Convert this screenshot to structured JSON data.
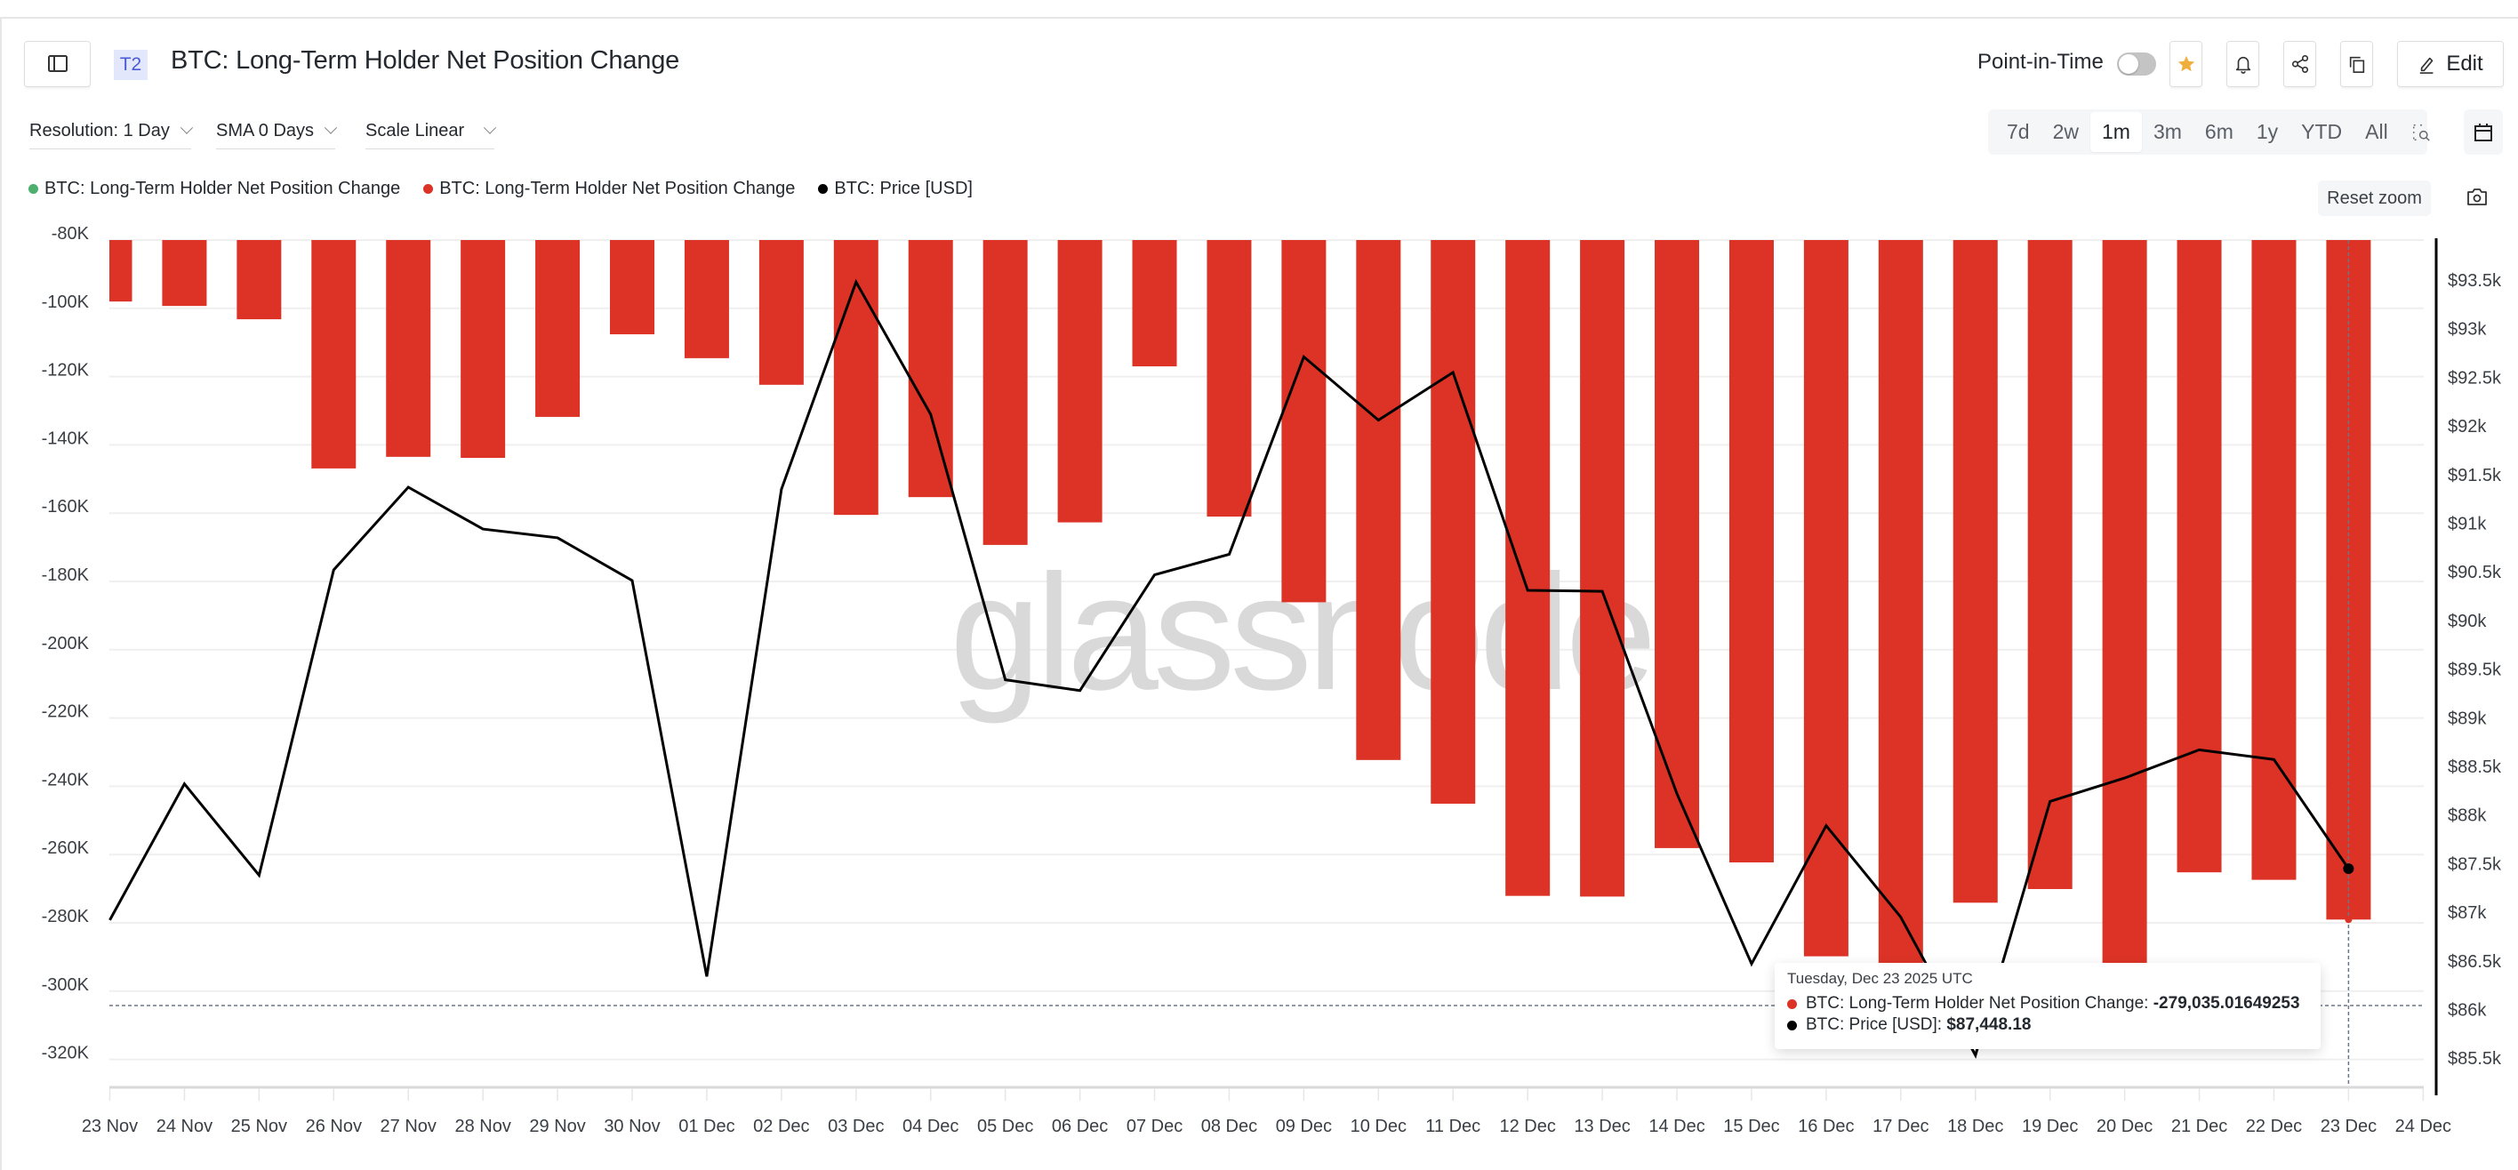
{
  "header": {
    "badge": "T2",
    "title": "BTC: Long-Term Holder Net Position Change",
    "point_in_time_label": "Point-in-Time",
    "point_in_time_enabled": false,
    "edit_label": "Edit",
    "icons": [
      "sidebar-toggle-icon",
      "star-icon",
      "bell-icon",
      "share-icon",
      "copy-icon",
      "pencil-icon"
    ]
  },
  "controls": {
    "resolution": "Resolution: 1 Day",
    "sma": "SMA 0 Days",
    "scale": "Scale Linear"
  },
  "ranges": [
    {
      "label": "7d",
      "active": false
    },
    {
      "label": "2w",
      "active": false
    },
    {
      "label": "1m",
      "active": true
    },
    {
      "label": "3m",
      "active": false
    },
    {
      "label": "6m",
      "active": false
    },
    {
      "label": "1y",
      "active": false
    },
    {
      "label": "YTD",
      "active": false
    },
    {
      "label": "All",
      "active": false
    }
  ],
  "reset_zoom_label": "Reset zoom",
  "legend": [
    {
      "label": "BTC: Long-Term Holder Net Position Change",
      "color": "#4caf6e"
    },
    {
      "label": "BTC: Long-Term Holder Net Position Change",
      "color": "#dc3326"
    },
    {
      "label": "BTC: Price [USD]",
      "color": "#000000"
    }
  ],
  "tooltip": {
    "date": "Tuesday, Dec 23 2025 UTC",
    "rows": [
      {
        "label": "BTC: Long-Term Holder Net Position Change: ",
        "value": "-279,035.01649253",
        "color": "#dc3326"
      },
      {
        "label": "BTC: Price [USD]: ",
        "value": "$87,448.18",
        "color": "#000000"
      }
    ]
  },
  "watermark": "glassnode",
  "colors": {
    "bar": "#dc3326",
    "price_line": "#000000",
    "grid": "#efefef",
    "accent_star": "#f0ae3c"
  },
  "chart_data": {
    "type": "bar",
    "title": "BTC: Long-Term Holder Net Position Change",
    "xlabel": "",
    "ylabel": "",
    "categories": [
      "23 Nov",
      "24 Nov",
      "25 Nov",
      "26 Nov",
      "27 Nov",
      "28 Nov",
      "29 Nov",
      "30 Nov",
      "01 Dec",
      "02 Dec",
      "03 Dec",
      "04 Dec",
      "05 Dec",
      "06 Dec",
      "07 Dec",
      "08 Dec",
      "09 Dec",
      "10 Dec",
      "11 Dec",
      "12 Dec",
      "13 Dec",
      "14 Dec",
      "15 Dec",
      "16 Dec",
      "17 Dec",
      "18 Dec",
      "19 Dec",
      "20 Dec",
      "21 Dec",
      "22 Dec",
      "23 Dec"
    ],
    "x_tick_labels": [
      "23 Nov",
      "24 Nov",
      "25 Nov",
      "26 Nov",
      "27 Nov",
      "28 Nov",
      "29 Nov",
      "30 Nov",
      "01 Dec",
      "02 Dec",
      "03 Dec",
      "04 Dec",
      "05 Dec",
      "06 Dec",
      "07 Dec",
      "08 Dec",
      "09 Dec",
      "10 Dec",
      "11 Dec",
      "12 Dec",
      "13 Dec",
      "14 Dec",
      "15 Dec",
      "16 Dec",
      "17 Dec",
      "18 Dec",
      "19 Dec",
      "20 Dec",
      "21 Dec",
      "22 Dec",
      "23 Dec",
      "24 Dec"
    ],
    "series": [
      {
        "name": "BTC: Long-Term Holder Net Position Change",
        "type": "bar",
        "axis": "left",
        "color": "#dc3326",
        "values": [
          -98000,
          -99300,
          -103200,
          -146900,
          -143500,
          -143800,
          -131800,
          -107600,
          -114600,
          -122400,
          -160500,
          -155300,
          -169300,
          -162700,
          -117000,
          -161000,
          -186100,
          -232300,
          -245100,
          -272100,
          -272300,
          -258100,
          -262300,
          -289800,
          -296000,
          -274100,
          -270100,
          -296000,
          -265200,
          -267400,
          -279035.01649253
        ]
      },
      {
        "name": "BTC: Price [USD]",
        "type": "line",
        "axis": "right",
        "color": "#000000",
        "values": [
          86920,
          88320,
          87380,
          90520,
          91370,
          90940,
          90850,
          90410,
          86340,
          91350,
          93480,
          92120,
          89390,
          89280,
          90470,
          90680,
          92710,
          92060,
          92550,
          90310,
          90300,
          88220,
          86470,
          87890,
          86950,
          85530,
          88140,
          88380,
          88670,
          88570,
          87448.18
        ]
      }
    ],
    "left_axis": {
      "ticks": [
        "-80K",
        "-100K",
        "-120K",
        "-140K",
        "-160K",
        "-180K",
        "-200K",
        "-220K",
        "-240K",
        "-260K",
        "-280K",
        "-300K",
        "-320K"
      ],
      "ylim": [
        -330000,
        -80000
      ]
    },
    "right_axis": {
      "ticks": [
        "$93.5k",
        "$93k",
        "$92.5k",
        "$92k",
        "$91.5k",
        "$91k",
        "$90.5k",
        "$90k",
        "$89.5k",
        "$89k",
        "$88.5k",
        "$88k",
        "$87.5k",
        "$87k",
        "$86.5k",
        "$86k",
        "$85.5k"
      ],
      "ylim": [
        85200,
        93900
      ]
    },
    "grid": true,
    "legend_position": "top-left",
    "hover_index": 30
  }
}
